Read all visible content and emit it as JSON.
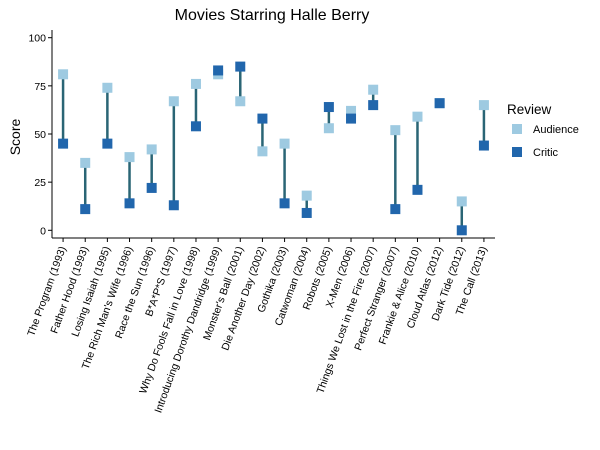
{
  "chart_data": {
    "type": "dumbbell",
    "title": "Movies Starring Halle Berry",
    "xlabel": "",
    "ylabel": "Score",
    "ylim": [
      -4,
      104
    ],
    "yticks": [
      0,
      25,
      50,
      75,
      100
    ],
    "grid": false,
    "legend": {
      "title": "Review",
      "placement": "right",
      "entries": [
        "Audience",
        "Critic"
      ]
    },
    "categories": [
      "The Program (1993)",
      "Father Hood (1993)",
      "Losing Isaiah (1995)",
      "The Rich Man's Wife (1996)",
      "Race the Sun (1996)",
      "B*A*P*S (1997)",
      "Why Do Fools Fall in Love (1998)",
      "Introducing Dorothy Dandridge (1999)",
      "Monster's Ball (2001)",
      "Die Another Day (2002)",
      "Gothika (2003)",
      "Catwoman (2004)",
      "Robots (2005)",
      "X-Men (2006)",
      "Things We Lost in the Fire (2007)",
      "Perfect Stranger (2007)",
      "Frankie & Alice (2010)",
      "Cloud Atlas (2012)",
      "Dark Tide (2012)",
      "The Call (2013)"
    ],
    "series": [
      {
        "name": "Audience",
        "values": [
          81,
          35,
          74,
          38,
          42,
          67,
          76,
          81,
          67,
          41,
          45,
          18,
          53,
          62,
          73,
          52,
          59,
          66,
          15,
          65
        ]
      },
      {
        "name": "Critic",
        "values": [
          45,
          11,
          45,
          14,
          22,
          13,
          54,
          83,
          85,
          58,
          14,
          9,
          64,
          58,
          65,
          11,
          21,
          66,
          0,
          44
        ]
      }
    ],
    "colors": {
      "audience": "#9ecae1",
      "critic": "#2166ac",
      "segment": "#2a6575"
    }
  }
}
